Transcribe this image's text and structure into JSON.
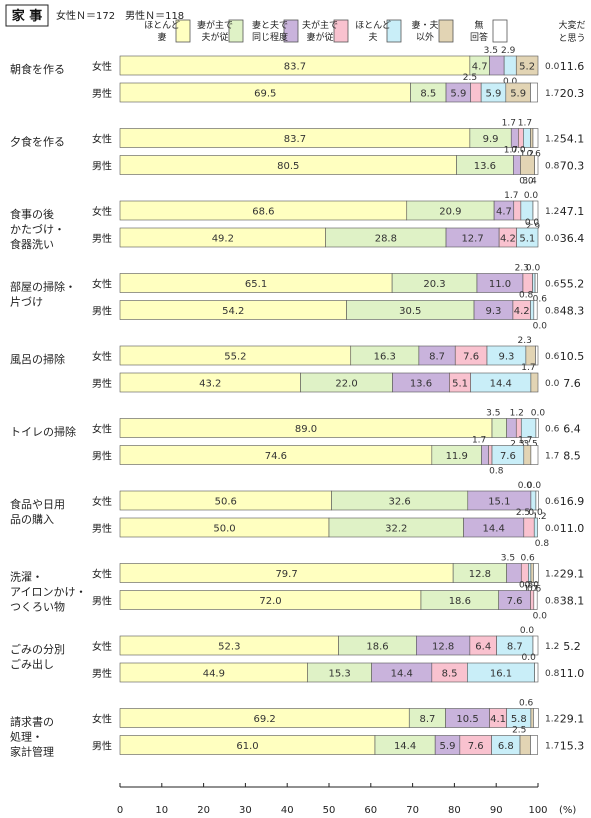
{
  "header": {
    "title": "家 事",
    "sample_note": "女性Ｎ＝172　男性Ｎ＝118"
  },
  "legend": {
    "items": [
      {
        "label": [
          "ほとんど",
          "妻"
        ],
        "color": "#ffffc0"
      },
      {
        "label": [
          "妻が主で",
          "夫が従"
        ],
        "color": "#dff2c6"
      },
      {
        "label": [
          "妻と夫で",
          "同じ程度"
        ],
        "color": "#c9b3dc"
      },
      {
        "label": [
          "夫が主で",
          "妻が従"
        ],
        "color": "#f9c2cf"
      },
      {
        "label": [
          "ほとんど",
          "夫"
        ],
        "color": "#c9eef8"
      },
      {
        "label": [
          "妻・夫",
          "以外"
        ],
        "color": "#e2d4b4"
      },
      {
        "label": [
          "無",
          "回答"
        ],
        "color": "#ffffff"
      }
    ],
    "right_header": [
      "大変だ",
      "と思う"
    ]
  },
  "chart_data": {
    "type": "bar",
    "orientation": "horizontal",
    "stacked": true,
    "xlim": [
      0,
      100
    ],
    "x_ticks": [
      "0",
      "10",
      "20",
      "30",
      "40",
      "50",
      "60",
      "70",
      "80",
      "90",
      "100"
    ],
    "x_unit": "(%)",
    "series_names": [
      "ほとんど妻",
      "妻が主で夫が従",
      "妻と夫で同じ程度",
      "夫が主で妻が従",
      "ほとんど夫",
      "妻・夫以外",
      "無回答"
    ],
    "groups": [
      {
        "category": [
          "朝食を作る"
        ],
        "rows": [
          {
            "sex": "女性",
            "values": [
              83.7,
              4.7,
              3.5,
              0.0,
              2.9,
              5.2,
              0.0
            ],
            "hard": "11.6"
          },
          {
            "sex": "男性",
            "values": [
              69.5,
              8.5,
              5.9,
              2.5,
              5.9,
              5.9,
              1.7
            ],
            "hard": "20.3"
          }
        ]
      },
      {
        "category": [
          "夕食を作る"
        ],
        "rows": [
          {
            "sex": "女性",
            "values": [
              83.7,
              9.9,
              1.7,
              1.2,
              1.7,
              0.6,
              1.2
            ],
            "hard": "54.1"
          },
          {
            "sex": "男性",
            "values": [
              80.5,
              13.6,
              1.7,
              0.0,
              0.0,
              3.4,
              0.8
            ],
            "hard": "70.3"
          }
        ]
      },
      {
        "category": [
          "食事の後",
          "かたづけ・",
          "食器洗い"
        ],
        "rows": [
          {
            "sex": "女性",
            "values": [
              68.6,
              20.9,
              4.7,
              1.7,
              2.9,
              0.0,
              1.2
            ],
            "hard": "47.1"
          },
          {
            "sex": "男性",
            "values": [
              49.2,
              28.8,
              12.7,
              4.2,
              5.1,
              0.0,
              0.0
            ],
            "hard": "36.4"
          }
        ]
      },
      {
        "category": [
          "部屋の掃除・",
          "片づけ"
        ],
        "rows": [
          {
            "sex": "女性",
            "values": [
              65.1,
              20.3,
              11.0,
              2.3,
              0.6,
              0.0,
              0.6
            ],
            "hard": "55.2"
          },
          {
            "sex": "男性",
            "values": [
              54.2,
              30.5,
              9.3,
              4.2,
              0.8,
              0.0,
              0.8
            ],
            "hard": "48.3"
          }
        ]
      },
      {
        "category": [
          "風呂の掃除"
        ],
        "rows": [
          {
            "sex": "女性",
            "values": [
              55.2,
              16.3,
              8.7,
              7.6,
              9.3,
              2.3,
              0.6
            ],
            "hard": "10.5"
          },
          {
            "sex": "男性",
            "values": [
              43.2,
              22.0,
              13.6,
              5.1,
              14.4,
              1.7,
              0.0
            ],
            "hard": "7.6"
          }
        ]
      },
      {
        "category": [
          "トイレの掃除"
        ],
        "rows": [
          {
            "sex": "女性",
            "values": [
              89.0,
              3.5,
              2.3,
              1.2,
              3.5,
              0.0,
              0.6
            ],
            "hard": "6.4"
          },
          {
            "sex": "男性",
            "values": [
              74.6,
              11.9,
              1.7,
              0.8,
              7.6,
              1.7,
              1.7
            ],
            "hard": "8.5"
          }
        ]
      },
      {
        "category": [
          "食品や日用",
          "品の購入"
        ],
        "rows": [
          {
            "sex": "女性",
            "values": [
              50.6,
              32.6,
              15.1,
              0.0,
              1.2,
              0.0,
              0.6
            ],
            "hard": "16.9"
          },
          {
            "sex": "男性",
            "values": [
              50.0,
              32.2,
              14.4,
              2.5,
              0.8,
              0.0,
              0.0
            ],
            "hard": "11.0"
          }
        ]
      },
      {
        "category": [
          "洗濯・",
          "アイロンかけ・",
          "つくろい物"
        ],
        "rows": [
          {
            "sex": "女性",
            "values": [
              79.7,
              12.8,
              3.5,
              1.7,
              0.6,
              0.6,
              1.2
            ],
            "hard": "29.1"
          },
          {
            "sex": "男性",
            "values": [
              72.0,
              18.6,
              7.6,
              0.8,
              0.0,
              0.0,
              0.8
            ],
            "hard": "38.1"
          }
        ]
      },
      {
        "category": [
          "ごみの分別",
          "ごみ出し"
        ],
        "rows": [
          {
            "sex": "女性",
            "values": [
              52.3,
              18.6,
              12.8,
              6.4,
              8.7,
              0.0,
              1.2
            ],
            "hard": "5.2"
          },
          {
            "sex": "男性",
            "values": [
              44.9,
              15.3,
              14.4,
              8.5,
              16.1,
              0.0,
              0.8
            ],
            "hard": "11.0"
          }
        ]
      },
      {
        "category": [
          "請求書の",
          "処理・",
          "家計管理"
        ],
        "rows": [
          {
            "sex": "女性",
            "values": [
              69.2,
              8.7,
              10.5,
              4.1,
              5.8,
              0.6,
              1.2
            ],
            "hard": "29.1"
          },
          {
            "sex": "男性",
            "values": [
              61.0,
              14.4,
              5.9,
              7.6,
              6.8,
              2.5,
              1.7
            ],
            "hard": "15.3"
          }
        ]
      }
    ]
  }
}
